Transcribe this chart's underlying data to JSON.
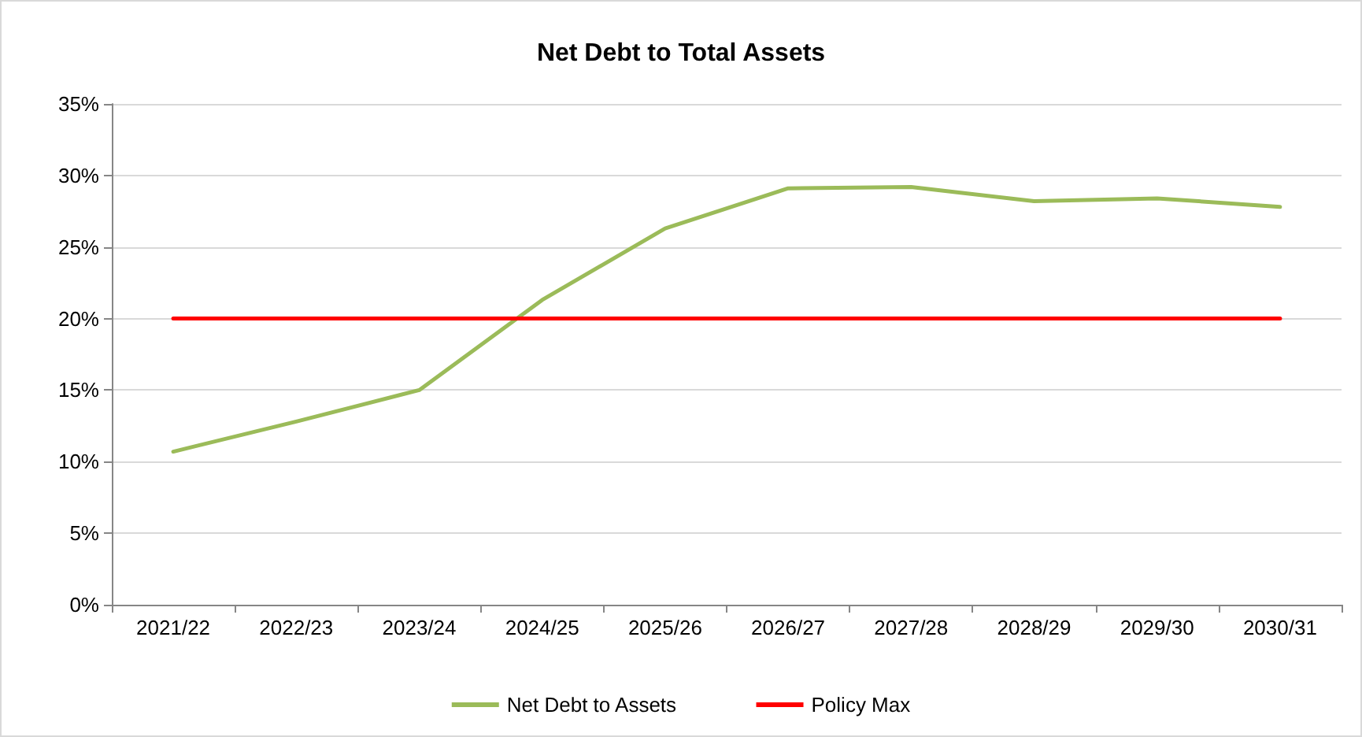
{
  "chart_data": {
    "type": "line",
    "title": "Net Debt to Total Assets",
    "categories": [
      "2021/22",
      "2022/23",
      "2023/24",
      "2024/25",
      "2025/26",
      "2026/27",
      "2027/28",
      "2028/29",
      "2029/30",
      "2030/31"
    ],
    "series": [
      {
        "name": "Net Debt to Assets",
        "color": "#9bbb59",
        "values": [
          10.7,
          12.8,
          15.0,
          21.3,
          26.3,
          29.1,
          29.2,
          28.2,
          28.4,
          27.8
        ]
      },
      {
        "name": "Policy Max",
        "color": "#ff0000",
        "values": [
          20,
          20,
          20,
          20,
          20,
          20,
          20,
          20,
          20,
          20
        ]
      }
    ],
    "ylim": [
      0,
      35
    ],
    "yticks": [
      {
        "value": 0,
        "label": "0%"
      },
      {
        "value": 5,
        "label": "5%"
      },
      {
        "value": 10,
        "label": "10%"
      },
      {
        "value": 15,
        "label": "15%"
      },
      {
        "value": 20,
        "label": "20%"
      },
      {
        "value": 25,
        "label": "25%"
      },
      {
        "value": 30,
        "label": "30%"
      },
      {
        "value": 35,
        "label": "35%"
      }
    ],
    "grid": "y",
    "legend": "bottom",
    "marker": "none",
    "line_style": "solid"
  }
}
